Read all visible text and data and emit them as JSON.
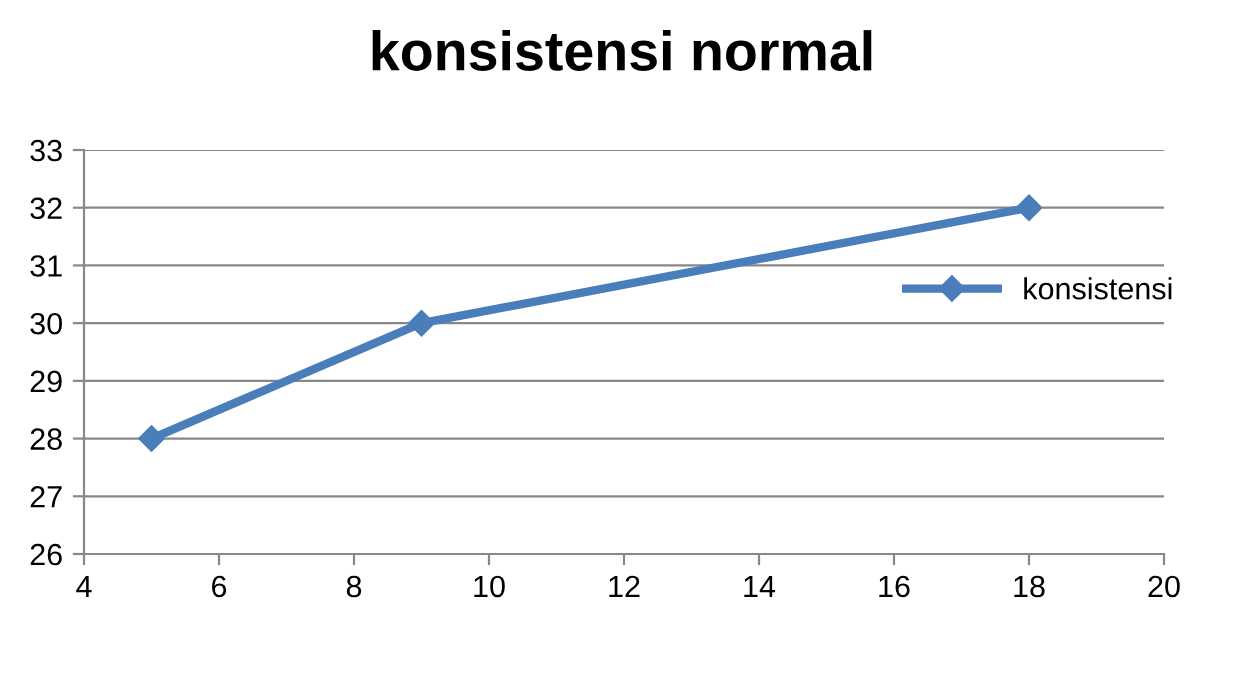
{
  "chart_data": {
    "type": "line",
    "title": "konsistensi normal",
    "x": [
      5,
      9,
      18
    ],
    "series": [
      {
        "name": "konsistensi",
        "color": "#4a7ebb",
        "values": [
          28,
          30,
          32
        ]
      }
    ],
    "xlim": [
      4,
      20
    ],
    "xticks": [
      4,
      6,
      8,
      10,
      12,
      14,
      16,
      18,
      20
    ],
    "ylim": [
      26,
      33
    ],
    "yticks": [
      26,
      27,
      28,
      29,
      30,
      31,
      32,
      33
    ],
    "grid": "y",
    "legend": "right",
    "marker": "diamond",
    "line_style": "solid"
  }
}
